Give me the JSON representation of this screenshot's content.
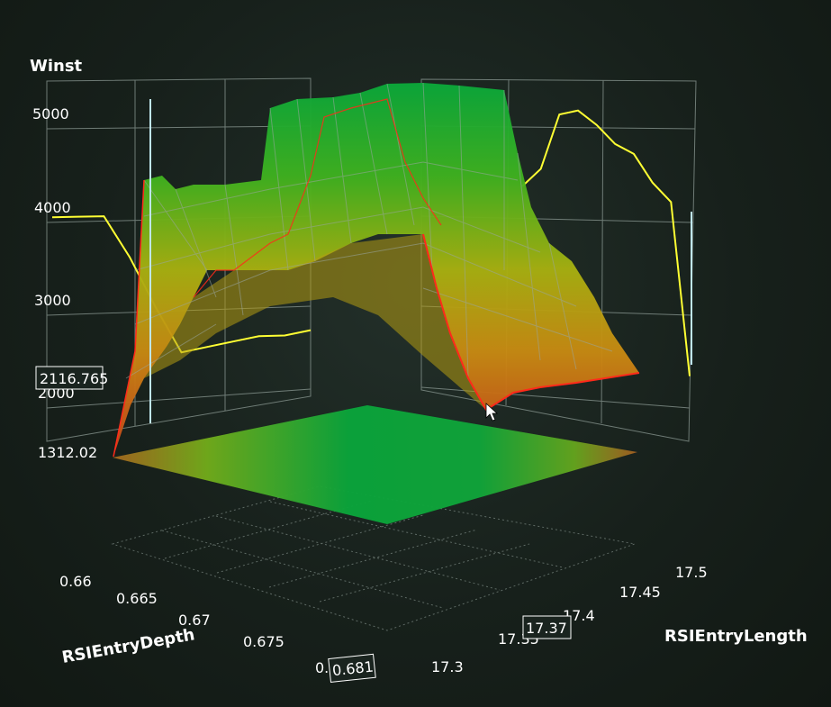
{
  "chart_data": {
    "type": "surface3d",
    "title": "",
    "z_axis": {
      "label": "Winst",
      "ticks": [
        "5000",
        "4000",
        "3000",
        "2000"
      ],
      "min_label": "1312.02",
      "range": [
        1312.02,
        5300
      ]
    },
    "x_axis": {
      "label": "RSIEntryDepth",
      "ticks": [
        "0.66",
        "0.665",
        "0.67",
        "0.675",
        "0."
      ],
      "range": [
        0.66,
        0.681
      ]
    },
    "y_axis": {
      "label": "RSIEntryLength",
      "ticks": [
        "17.5",
        "17.45",
        "17.4",
        "17.35",
        "17.3"
      ],
      "range": [
        17.3,
        17.5
      ]
    },
    "cursor_readout": {
      "z": "2116.765",
      "x": "0.681",
      "y": "17.37"
    },
    "front_ridge_profile": {
      "x": [
        0.66,
        0.6605,
        0.661,
        0.6615,
        0.662,
        0.6625,
        0.663,
        0.664,
        0.665,
        0.666,
        0.667,
        0.668,
        0.669,
        0.67,
        0.671,
        0.672,
        0.673,
        0.674,
        0.675,
        0.676,
        0.677,
        0.678,
        0.679,
        0.68,
        0.681
      ],
      "winst": [
        1312,
        2600,
        3300,
        3900,
        4250,
        4500,
        4600,
        4550,
        4700,
        4650,
        4300,
        5050,
        5200,
        5150,
        5250,
        5300,
        5200,
        5050,
        4800,
        4200,
        3600,
        2900,
        2400,
        2200,
        2117
      ]
    },
    "back_wall_profile_left": {
      "winst": [
        3950,
        3950,
        3950,
        3500,
        2950,
        2450,
        2500,
        2550,
        2600,
        2600,
        2650
      ]
    },
    "back_wall_profile_right": {
      "winst": [
        4300,
        4500,
        5100,
        5150,
        5000,
        4800,
        4700,
        4400,
        4200,
        2350
      ]
    },
    "colors": {
      "high": "#0aa83a",
      "mid": "#a8b010",
      "low": "#c8421a",
      "edge_line": "#ff2a1a",
      "wall_line": "#ffff33",
      "grid": "#8c9a94"
    }
  }
}
